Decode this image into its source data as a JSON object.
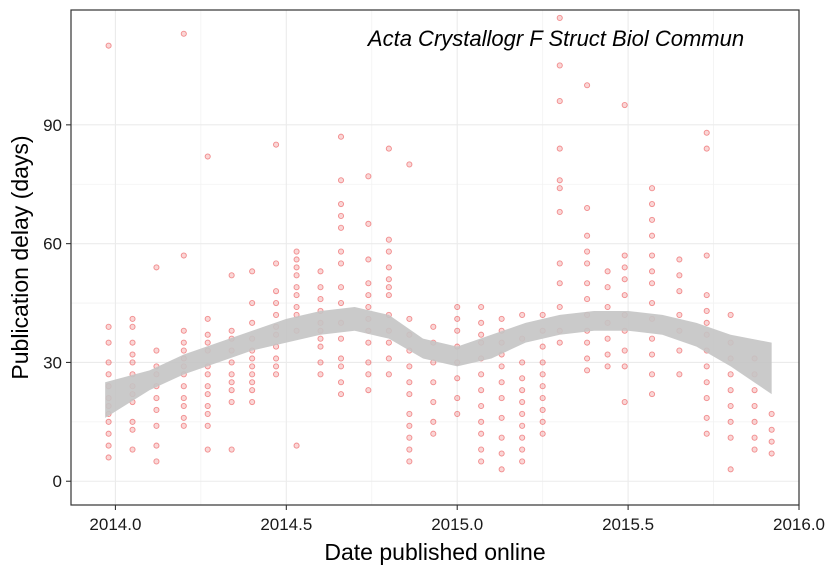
{
  "chart_data": {
    "type": "scatter",
    "title": "Acta Crystallogr F Struct Biol Commun",
    "xlabel": "Date published online",
    "ylabel": "Publication delay (days)",
    "xlim": [
      2013.87,
      2016.0
    ],
    "ylim": [
      -6,
      119
    ],
    "x_ticks": [
      2014.0,
      2014.5,
      2015.0,
      2015.5,
      2016.0
    ],
    "x_tick_labels": [
      "2014.0",
      "2014.5",
      "2015.0",
      "2015.5",
      "2016.0"
    ],
    "y_ticks": [
      0,
      30,
      60,
      90
    ],
    "y_tick_labels": [
      "0",
      "30",
      "60",
      "90"
    ],
    "grid": true,
    "point_color": "#e41a1c",
    "band_color": "#c4c4c4",
    "columns": [
      {
        "x": 2013.98,
        "y": [
          110,
          39,
          35,
          30,
          27,
          24,
          21,
          19,
          17,
          15,
          12,
          9,
          6
        ]
      },
      {
        "x": 2014.05,
        "y": [
          41,
          39,
          35,
          32,
          30,
          27,
          24,
          22,
          20,
          15,
          13,
          8
        ]
      },
      {
        "x": 2014.12,
        "y": [
          54,
          33,
          29,
          27,
          24,
          21,
          18,
          14,
          9,
          5
        ]
      },
      {
        "x": 2014.2,
        "y": [
          113,
          57,
          38,
          35,
          33,
          31,
          29,
          27,
          24,
          21,
          19,
          16,
          14
        ]
      },
      {
        "x": 2014.27,
        "y": [
          82,
          41,
          37,
          35,
          33,
          29,
          27,
          24,
          22,
          19,
          17,
          14,
          8
        ]
      },
      {
        "x": 2014.34,
        "y": [
          52,
          38,
          36,
          33,
          30,
          27,
          25,
          23,
          20,
          8
        ]
      },
      {
        "x": 2014.4,
        "y": [
          53,
          45,
          40,
          36,
          33,
          31,
          29,
          27,
          25,
          23,
          20
        ]
      },
      {
        "x": 2014.47,
        "y": [
          85,
          55,
          48,
          45,
          42,
          39,
          37,
          34,
          31,
          29,
          27
        ]
      },
      {
        "x": 2014.53,
        "y": [
          58,
          56,
          54,
          52,
          49,
          47,
          44,
          42,
          38,
          9
        ]
      },
      {
        "x": 2014.6,
        "y": [
          53,
          49,
          46,
          43,
          40,
          38,
          36,
          34,
          30,
          27
        ]
      },
      {
        "x": 2014.66,
        "y": [
          87,
          76,
          70,
          67,
          64,
          58,
          55,
          49,
          45,
          40,
          36,
          31,
          29,
          25,
          22
        ]
      },
      {
        "x": 2014.74,
        "y": [
          77,
          65,
          56,
          50,
          47,
          44,
          41,
          38,
          35,
          30,
          27,
          23
        ]
      },
      {
        "x": 2014.8,
        "y": [
          84,
          61,
          58,
          54,
          51,
          49,
          47,
          42,
          38,
          35,
          31,
          27
        ]
      },
      {
        "x": 2014.86,
        "y": [
          80,
          41,
          37,
          33,
          29,
          25,
          22,
          17,
          14,
          11,
          8,
          5
        ]
      },
      {
        "x": 2014.93,
        "y": [
          39,
          35,
          30,
          25,
          20,
          15,
          12
        ]
      },
      {
        "x": 2015.0,
        "y": [
          44,
          41,
          38,
          34,
          30,
          26,
          21,
          17
        ]
      },
      {
        "x": 2015.07,
        "y": [
          44,
          40,
          37,
          35,
          31,
          27,
          23,
          19,
          15,
          12,
          8,
          5
        ]
      },
      {
        "x": 2015.13,
        "y": [
          41,
          38,
          35,
          32,
          29,
          25,
          21,
          16,
          11,
          7,
          3
        ]
      },
      {
        "x": 2015.19,
        "y": [
          42,
          36,
          30,
          26,
          23,
          20,
          17,
          14,
          11,
          8,
          5
        ]
      },
      {
        "x": 2015.25,
        "y": [
          42,
          38,
          34,
          30,
          27,
          24,
          21,
          18,
          15,
          12
        ]
      },
      {
        "x": 2015.3,
        "y": [
          117,
          105,
          96,
          84,
          76,
          74,
          68,
          55,
          50,
          44,
          38,
          35
        ]
      },
      {
        "x": 2015.38,
        "y": [
          100,
          69,
          62,
          58,
          55,
          50,
          46,
          42,
          38,
          35,
          31,
          28
        ]
      },
      {
        "x": 2015.44,
        "y": [
          53,
          49,
          44,
          40,
          36,
          32,
          29
        ]
      },
      {
        "x": 2015.49,
        "y": [
          95,
          57,
          54,
          51,
          47,
          42,
          38,
          33,
          29,
          20
        ]
      },
      {
        "x": 2015.57,
        "y": [
          74,
          70,
          66,
          62,
          57,
          53,
          50,
          45,
          41,
          36,
          32,
          27,
          22
        ]
      },
      {
        "x": 2015.65,
        "y": [
          56,
          52,
          48,
          42,
          38,
          33,
          27
        ]
      },
      {
        "x": 2015.73,
        "y": [
          88,
          84,
          57,
          47,
          43,
          40,
          37,
          33,
          29,
          25,
          21,
          16,
          12
        ]
      },
      {
        "x": 2015.8,
        "y": [
          42,
          35,
          31,
          27,
          23,
          19,
          15,
          11,
          3
        ]
      },
      {
        "x": 2015.87,
        "y": [
          31,
          27,
          23,
          19,
          15,
          11,
          8
        ]
      },
      {
        "x": 2015.92,
        "y": [
          17,
          13,
          10,
          7
        ]
      }
    ],
    "band": {
      "x": [
        2013.97,
        2014.1,
        2014.2,
        2014.3,
        2014.4,
        2014.5,
        2014.6,
        2014.7,
        2014.8,
        2014.9,
        2015.0,
        2015.1,
        2015.2,
        2015.3,
        2015.4,
        2015.5,
        2015.6,
        2015.7,
        2015.8,
        2015.92
      ],
      "lower": [
        16,
        23,
        27,
        30,
        33,
        35,
        37,
        38,
        36,
        31,
        29,
        31,
        35,
        37,
        38,
        38,
        37,
        34,
        29,
        22
      ],
      "upper": [
        25,
        28,
        32,
        35,
        38,
        41,
        43,
        44,
        42,
        36,
        34,
        37,
        40,
        42,
        43,
        43,
        42,
        40,
        37,
        35
      ]
    }
  }
}
